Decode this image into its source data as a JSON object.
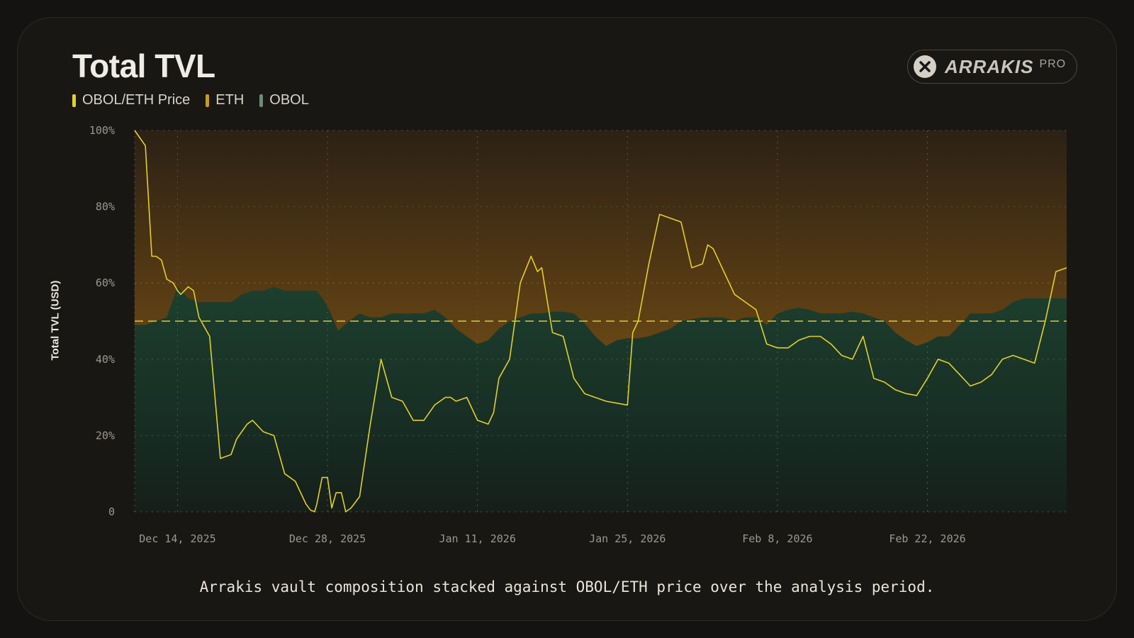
{
  "title": "Total TVL",
  "legend": [
    {
      "label": "OBOL/ETH Price",
      "color": "#e3cf2a"
    },
    {
      "label": "ETH",
      "color": "#c99a1e"
    },
    {
      "label": "OBOL",
      "color": "#6f8a76"
    }
  ],
  "badge": {
    "brand": "ARRAKIS",
    "tier": "PRO",
    "icon": "x-icon"
  },
  "caption": "Arrakis vault composition stacked against OBOL/ETH price over the analysis period.",
  "colors": {
    "price_line": "#e3cf2a",
    "eth_area": "#7a5416",
    "obol_area": "#18372a",
    "reference_line": "#d8cc3a"
  },
  "chart_data": {
    "type": "area",
    "ylabel": "Total TVL (USD)",
    "y_ticks": [
      "0",
      "20%",
      "40%",
      "60%",
      "80%",
      "100%"
    ],
    "ylim": [
      0,
      100
    ],
    "x_range": [
      "2025-12-10",
      "2026-03-07"
    ],
    "x_ticks": [
      {
        "label": "Dec 14, 2025",
        "date": "2025-12-14"
      },
      {
        "label": "Dec 28, 2025",
        "date": "2025-12-28"
      },
      {
        "label": "Jan 11, 2026",
        "date": "2026-01-11"
      },
      {
        "label": "Jan 25, 2026",
        "date": "2026-01-25"
      },
      {
        "label": "Feb 8, 2026",
        "date": "2026-02-08"
      },
      {
        "label": "Feb 22, 2026",
        "date": "2026-02-22"
      }
    ],
    "grid": true,
    "reference_line": 50,
    "series": [
      {
        "name": "OBOL",
        "kind": "area-bottom",
        "points": [
          [
            "2025-12-10",
            49
          ],
          [
            "2025-12-11",
            49
          ],
          [
            "2025-12-12",
            50
          ],
          [
            "2025-12-13",
            51
          ],
          [
            "2025-12-14",
            59
          ],
          [
            "2025-12-15",
            56
          ],
          [
            "2025-12-16",
            55
          ],
          [
            "2025-12-17",
            55
          ],
          [
            "2025-12-18",
            55
          ],
          [
            "2025-12-19",
            55
          ],
          [
            "2025-12-20",
            57
          ],
          [
            "2025-12-21",
            58
          ],
          [
            "2025-12-22",
            58
          ],
          [
            "2025-12-23",
            59
          ],
          [
            "2025-12-24",
            58
          ],
          [
            "2025-12-25",
            58
          ],
          [
            "2025-12-26",
            58
          ],
          [
            "2025-12-27",
            58
          ],
          [
            "2025-12-28",
            54
          ],
          [
            "2025-12-29",
            47.5
          ],
          [
            "2025-12-30",
            50
          ],
          [
            "2025-12-31",
            52
          ],
          [
            "2026-01-01",
            51
          ],
          [
            "2026-01-02",
            51
          ],
          [
            "2026-01-03",
            52
          ],
          [
            "2026-01-04",
            52
          ],
          [
            "2026-01-05",
            52
          ],
          [
            "2026-01-06",
            52
          ],
          [
            "2026-01-07",
            53
          ],
          [
            "2026-01-08",
            51
          ],
          [
            "2026-01-09",
            48
          ],
          [
            "2026-01-10",
            46
          ],
          [
            "2026-01-11",
            44
          ],
          [
            "2026-01-12",
            45
          ],
          [
            "2026-01-13",
            48
          ],
          [
            "2026-01-14",
            50
          ],
          [
            "2026-01-15",
            51
          ],
          [
            "2026-01-16",
            52
          ],
          [
            "2026-01-17",
            52
          ],
          [
            "2026-01-18",
            52.5
          ],
          [
            "2026-01-19",
            52.5
          ],
          [
            "2026-01-20",
            52
          ],
          [
            "2026-01-21",
            49.5
          ],
          [
            "2026-01-22",
            46
          ],
          [
            "2026-01-23",
            43.5
          ],
          [
            "2026-01-24",
            45
          ],
          [
            "2026-01-25",
            45.5
          ],
          [
            "2026-01-26",
            45.5
          ],
          [
            "2026-01-27",
            46
          ],
          [
            "2026-01-28",
            47
          ],
          [
            "2026-01-29",
            48
          ],
          [
            "2026-01-30",
            50
          ],
          [
            "2026-01-31",
            50.5
          ],
          [
            "2026-02-01",
            51
          ],
          [
            "2026-02-02",
            51
          ],
          [
            "2026-02-03",
            51
          ],
          [
            "2026-02-04",
            50
          ],
          [
            "2026-02-05",
            51
          ],
          [
            "2026-02-06",
            51
          ],
          [
            "2026-02-07",
            49
          ],
          [
            "2026-02-08",
            52
          ],
          [
            "2026-02-09",
            53
          ],
          [
            "2026-02-10",
            53.5
          ],
          [
            "2026-02-11",
            53
          ],
          [
            "2026-02-12",
            52
          ],
          [
            "2026-02-13",
            52
          ],
          [
            "2026-02-14",
            52
          ],
          [
            "2026-02-15",
            52.5
          ],
          [
            "2026-02-16",
            52
          ],
          [
            "2026-02-17",
            51
          ],
          [
            "2026-02-18",
            50
          ],
          [
            "2026-02-19",
            47
          ],
          [
            "2026-02-20",
            45
          ],
          [
            "2026-02-21",
            43.5
          ],
          [
            "2026-02-22",
            44.5
          ],
          [
            "2026-02-23",
            46
          ],
          [
            "2026-02-24",
            46
          ],
          [
            "2026-02-25",
            49
          ],
          [
            "2026-02-26",
            52
          ],
          [
            "2026-02-27",
            52
          ],
          [
            "2026-02-28",
            52
          ],
          [
            "2026-03-01",
            53
          ],
          [
            "2026-03-02",
            55
          ],
          [
            "2026-03-03",
            56
          ],
          [
            "2026-03-04",
            56
          ],
          [
            "2026-03-05",
            56
          ],
          [
            "2026-03-06",
            56
          ],
          [
            "2026-03-07",
            56
          ]
        ]
      },
      {
        "name": "ETH",
        "kind": "area-top",
        "points": [
          [
            "2025-12-10",
            100
          ],
          [
            "2026-03-07",
            100
          ]
        ]
      },
      {
        "name": "OBOL/ETH Price",
        "kind": "line",
        "points": [
          [
            "2025-12-10",
            100
          ],
          [
            "2025-12-11",
            96
          ],
          [
            "2025-12-11.6",
            67
          ],
          [
            "2025-12-12",
            67
          ],
          [
            "2025-12-12.5",
            66
          ],
          [
            "2025-12-13",
            61
          ],
          [
            "2025-12-13.6",
            60
          ],
          [
            "2025-12-14",
            58
          ],
          [
            "2025-12-14.3",
            57
          ],
          [
            "2025-12-15",
            59
          ],
          [
            "2025-12-15.5",
            58
          ],
          [
            "2025-12-16",
            51
          ],
          [
            "2025-12-17",
            46
          ],
          [
            "2025-12-18",
            14
          ],
          [
            "2025-12-19",
            15
          ],
          [
            "2025-12-19.5",
            19
          ],
          [
            "2025-12-20",
            21
          ],
          [
            "2025-12-20.5",
            23
          ],
          [
            "2025-12-21",
            24
          ],
          [
            "2025-12-22",
            21
          ],
          [
            "2025-12-23",
            20
          ],
          [
            "2025-12-24",
            10
          ],
          [
            "2025-12-25",
            8
          ],
          [
            "2025-12-26",
            2
          ],
          [
            "2025-12-26.4",
            0.5
          ],
          [
            "2025-12-26.8",
            0
          ],
          [
            "2025-12-27",
            2
          ],
          [
            "2025-12-27.5",
            9
          ],
          [
            "2025-12-28",
            9
          ],
          [
            "2025-12-28.4",
            1
          ],
          [
            "2025-12-28.8",
            5
          ],
          [
            "2025-12-29.3",
            5
          ],
          [
            "2025-12-29.7",
            0
          ],
          [
            "2025-12-30.2",
            1
          ],
          [
            "2025-12-31",
            4
          ],
          [
            "2026-01-01",
            23
          ],
          [
            "2026-01-02",
            40
          ],
          [
            "2026-01-03",
            30
          ],
          [
            "2026-01-04",
            29
          ],
          [
            "2026-01-05",
            24
          ],
          [
            "2026-01-06",
            24
          ],
          [
            "2026-01-07",
            28
          ],
          [
            "2026-01-08",
            30
          ],
          [
            "2026-01-08.5",
            30
          ],
          [
            "2026-01-09",
            29
          ],
          [
            "2026-01-10",
            30
          ],
          [
            "2026-01-11",
            24
          ],
          [
            "2026-01-12",
            23
          ],
          [
            "2026-01-12.5",
            26
          ],
          [
            "2026-01-13",
            35
          ],
          [
            "2026-01-14",
            40
          ],
          [
            "2026-01-15",
            60
          ],
          [
            "2026-01-16",
            67
          ],
          [
            "2026-01-16.6",
            63
          ],
          [
            "2026-01-17",
            64
          ],
          [
            "2026-01-18",
            47
          ],
          [
            "2026-01-19",
            46
          ],
          [
            "2026-01-20",
            35
          ],
          [
            "2026-01-21",
            31
          ],
          [
            "2026-01-22",
            30
          ],
          [
            "2026-01-23",
            29
          ],
          [
            "2026-01-24",
            28.5
          ],
          [
            "2026-01-25",
            28
          ],
          [
            "2026-01-25.5",
            47
          ],
          [
            "2026-01-26",
            50
          ],
          [
            "2026-01-27",
            65
          ],
          [
            "2026-01-28",
            78
          ],
          [
            "2026-01-29",
            77
          ],
          [
            "2026-01-30",
            76
          ],
          [
            "2026-01-31",
            64
          ],
          [
            "2026-02-01",
            65
          ],
          [
            "2026-02-01.5",
            70
          ],
          [
            "2026-02-02",
            69
          ],
          [
            "2026-02-03",
            63
          ],
          [
            "2026-02-04",
            57
          ],
          [
            "2026-02-05",
            55
          ],
          [
            "2026-02-06",
            53
          ],
          [
            "2026-02-07",
            44
          ],
          [
            "2026-02-08",
            43
          ],
          [
            "2026-02-09",
            43
          ],
          [
            "2026-02-10",
            45
          ],
          [
            "2026-02-11",
            46
          ],
          [
            "2026-02-12",
            46
          ],
          [
            "2026-02-13",
            44
          ],
          [
            "2026-02-14",
            41
          ],
          [
            "2026-02-15",
            40
          ],
          [
            "2026-02-16",
            46
          ],
          [
            "2026-02-17",
            35
          ],
          [
            "2026-02-18",
            34
          ],
          [
            "2026-02-19",
            32
          ],
          [
            "2026-02-20",
            31
          ],
          [
            "2026-02-21",
            30.5
          ],
          [
            "2026-02-22",
            35
          ],
          [
            "2026-02-23",
            40
          ],
          [
            "2026-02-24",
            39
          ],
          [
            "2026-02-25",
            36
          ],
          [
            "2026-02-26",
            33
          ],
          [
            "2026-02-27",
            34
          ],
          [
            "2026-02-28",
            36
          ],
          [
            "2026-03-01",
            40
          ],
          [
            "2026-03-02",
            41
          ],
          [
            "2026-03-03",
            40
          ],
          [
            "2026-03-04",
            39
          ],
          [
            "2026-03-05",
            50
          ],
          [
            "2026-03-06",
            63
          ],
          [
            "2026-03-07",
            64
          ]
        ]
      }
    ]
  }
}
